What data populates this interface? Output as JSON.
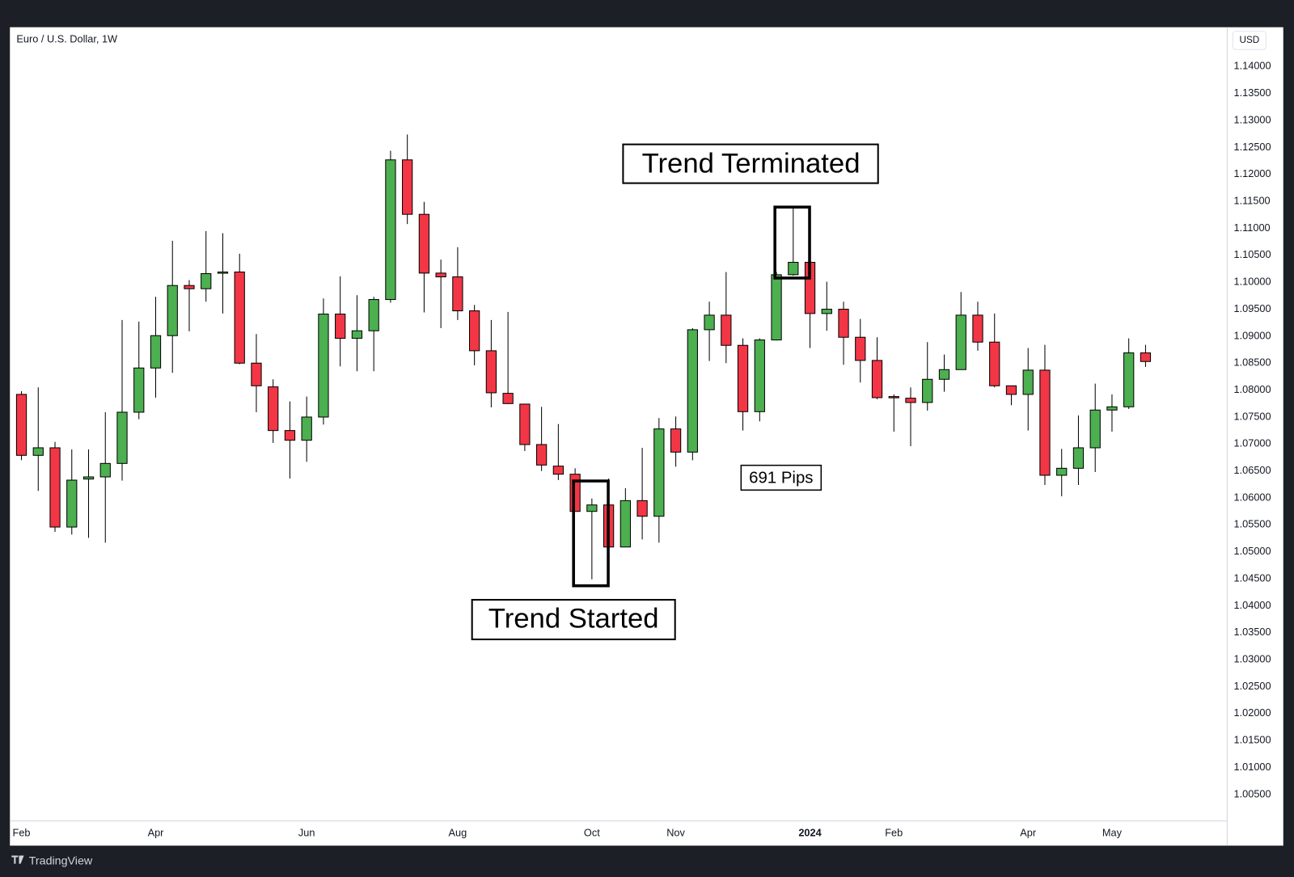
{
  "chart_data": {
    "type": "candlestick",
    "title": "Euro / U.S. Dollar, 1W",
    "y_axis_label": "USD",
    "categories": [
      "Feb",
      null,
      null,
      null,
      null,
      null,
      null,
      null,
      "Apr",
      null,
      null,
      null,
      null,
      null,
      null,
      null,
      null,
      "Jun",
      null,
      null,
      null,
      null,
      null,
      null,
      null,
      null,
      "Aug",
      null,
      null,
      null,
      null,
      null,
      null,
      null,
      "Oct",
      null,
      null,
      null,
      null,
      "Nov",
      null,
      null,
      null,
      null,
      null,
      null,
      null,
      "2024",
      null,
      null,
      null,
      null,
      "Feb",
      null,
      null,
      null,
      null,
      null,
      null,
      null,
      "Apr",
      null,
      null,
      null,
      null,
      "May",
      null,
      null
    ],
    "open": [
      1.0792,
      1.0679,
      1.0693,
      1.0546,
      1.0635,
      1.0639,
      1.0664,
      1.0759,
      1.0841,
      1.0901,
      1.0994,
      1.0988,
      1.1018,
      1.1019,
      1.085,
      1.0806,
      1.0725,
      1.0707,
      1.075,
      1.0941,
      1.0896,
      1.091,
      1.0968,
      1.1227,
      1.1126,
      1.1017,
      1.101,
      1.0947,
      1.0873,
      1.0794,
      1.0774,
      1.0699,
      1.0659,
      1.0644,
      1.0575,
      1.0587,
      1.0509,
      1.0595,
      1.0566,
      1.0728,
      1.0685,
      1.0912,
      1.0939,
      1.0883,
      1.076,
      1.0893,
      1.1014,
      1.1037,
      1.0942,
      1.095,
      1.0898,
      1.0855,
      1.0788,
      1.0785,
      1.0777,
      1.082,
      1.0838,
      1.0939,
      1.0889,
      1.0808,
      1.0792,
      1.0837,
      1.0642,
      1.0655,
      1.0693,
      1.0763,
      1.0769,
      1.0869
    ],
    "high": [
      1.0798,
      1.0805,
      1.0704,
      1.069,
      1.069,
      1.0759,
      1.093,
      1.0927,
      1.0973,
      1.1077,
      1.1004,
      1.1095,
      1.1091,
      1.1053,
      1.0904,
      1.082,
      1.0779,
      1.0788,
      1.097,
      1.1011,
      1.0976,
      1.0973,
      1.1244,
      1.1274,
      1.1149,
      1.1042,
      1.1065,
      1.0958,
      1.093,
      1.0945,
      1.0774,
      1.0769,
      1.0737,
      1.0655,
      1.0599,
      1.0636,
      1.0618,
      1.0693,
      1.0748,
      1.0751,
      1.0915,
      1.0964,
      1.1019,
      1.0896,
      1.0896,
      1.1019,
      1.1138,
      1.104,
      1.1001,
      1.0964,
      1.0932,
      1.0898,
      1.0792,
      1.0805,
      1.0889,
      1.0866,
      1.0982,
      1.0964,
      1.0942,
      1.0808,
      1.0878,
      1.0884,
      1.0691,
      1.0753,
      1.0812,
      1.0792,
      1.0896,
      1.0884
    ],
    "low": [
      1.067,
      1.0613,
      1.0537,
      1.0532,
      1.0526,
      1.0517,
      1.0632,
      1.0746,
      1.0786,
      1.0832,
      1.0909,
      1.0964,
      1.0942,
      1.0848,
      1.0759,
      1.0702,
      1.0636,
      1.0667,
      1.0736,
      1.0844,
      1.0835,
      1.0835,
      1.0962,
      1.1108,
      1.0944,
      1.0915,
      1.093,
      1.0846,
      1.0768,
      1.0774,
      1.0687,
      1.065,
      1.0633,
      1.0575,
      1.0449,
      1.0509,
      1.0509,
      1.0523,
      1.0517,
      1.0658,
      1.067,
      1.0854,
      1.085,
      1.0725,
      1.0742,
      1.0892,
      1.1012,
      1.0878,
      1.091,
      1.0847,
      1.0814,
      1.0783,
      1.0723,
      1.0696,
      1.0762,
      1.0797,
      1.0838,
      1.0873,
      1.0805,
      1.0772,
      1.0725,
      1.0624,
      1.0603,
      1.0624,
      1.0648,
      1.0723,
      1.0765,
      1.0843
    ],
    "close": [
      1.0679,
      1.0693,
      1.0546,
      1.0633,
      1.0639,
      1.0664,
      1.0759,
      1.0841,
      1.0901,
      1.0994,
      1.0988,
      1.1016,
      1.1019,
      1.085,
      1.0808,
      1.0725,
      1.0707,
      1.075,
      1.0941,
      1.0896,
      1.091,
      1.0968,
      1.1227,
      1.1126,
      1.1017,
      1.101,
      1.0947,
      1.0873,
      1.0795,
      1.0775,
      1.0699,
      1.0661,
      1.0644,
      1.0575,
      1.0587,
      1.0509,
      1.0595,
      1.0566,
      1.0728,
      1.0685,
      1.0912,
      1.0939,
      1.0883,
      1.076,
      1.0893,
      1.1014,
      1.1037,
      1.0942,
      1.095,
      1.0898,
      1.0855,
      1.0786,
      1.0787,
      1.0777,
      1.082,
      1.0838,
      1.0939,
      1.0889,
      1.0808,
      1.0792,
      1.0837,
      1.0642,
      1.0655,
      1.0693,
      1.0763,
      1.0769,
      1.0869,
      1.0853
    ],
    "up_color": "#4caf50",
    "down_color": "#f23645",
    "ylim": [
      1.0001,
      1.1473
    ],
    "yticks": [
      {
        "value": 1.005,
        "label": "1.00500"
      },
      {
        "value": 1.01,
        "label": "1.01000"
      },
      {
        "value": 1.015,
        "label": "1.01500"
      },
      {
        "value": 1.02,
        "label": "1.02000"
      },
      {
        "value": 1.025,
        "label": "1.02500"
      },
      {
        "value": 1.03,
        "label": "1.03000"
      },
      {
        "value": 1.035,
        "label": "1.03500"
      },
      {
        "value": 1.04,
        "label": "1.04000"
      },
      {
        "value": 1.045,
        "label": "1.04500"
      },
      {
        "value": 1.05,
        "label": "1.05000"
      },
      {
        "value": 1.055,
        "label": "1.05500"
      },
      {
        "value": 1.06,
        "label": "1.06000"
      },
      {
        "value": 1.065,
        "label": "1.06500"
      },
      {
        "value": 1.07,
        "label": "1.07000"
      },
      {
        "value": 1.075,
        "label": "1.07500"
      },
      {
        "value": 1.08,
        "label": "1.08000"
      },
      {
        "value": 1.085,
        "label": "1.08500"
      },
      {
        "value": 1.09,
        "label": "1.09000"
      },
      {
        "value": 1.095,
        "label": "1.09500"
      },
      {
        "value": 1.1,
        "label": "1.10000"
      },
      {
        "value": 1.105,
        "label": "1.10500"
      },
      {
        "value": 1.11,
        "label": "1.11000"
      },
      {
        "value": 1.115,
        "label": "1.11500"
      },
      {
        "value": 1.12,
        "label": "1.12000"
      },
      {
        "value": 1.125,
        "label": "1.12500"
      },
      {
        "value": 1.13,
        "label": "1.13000"
      },
      {
        "value": 1.135,
        "label": "1.13500"
      },
      {
        "value": 1.14,
        "label": "1.14000"
      }
    ],
    "grid": false,
    "annotations": [
      "Trend Terminated",
      "Trend Started",
      "691 Pips"
    ]
  },
  "footer": {
    "brand": "TradingView"
  }
}
